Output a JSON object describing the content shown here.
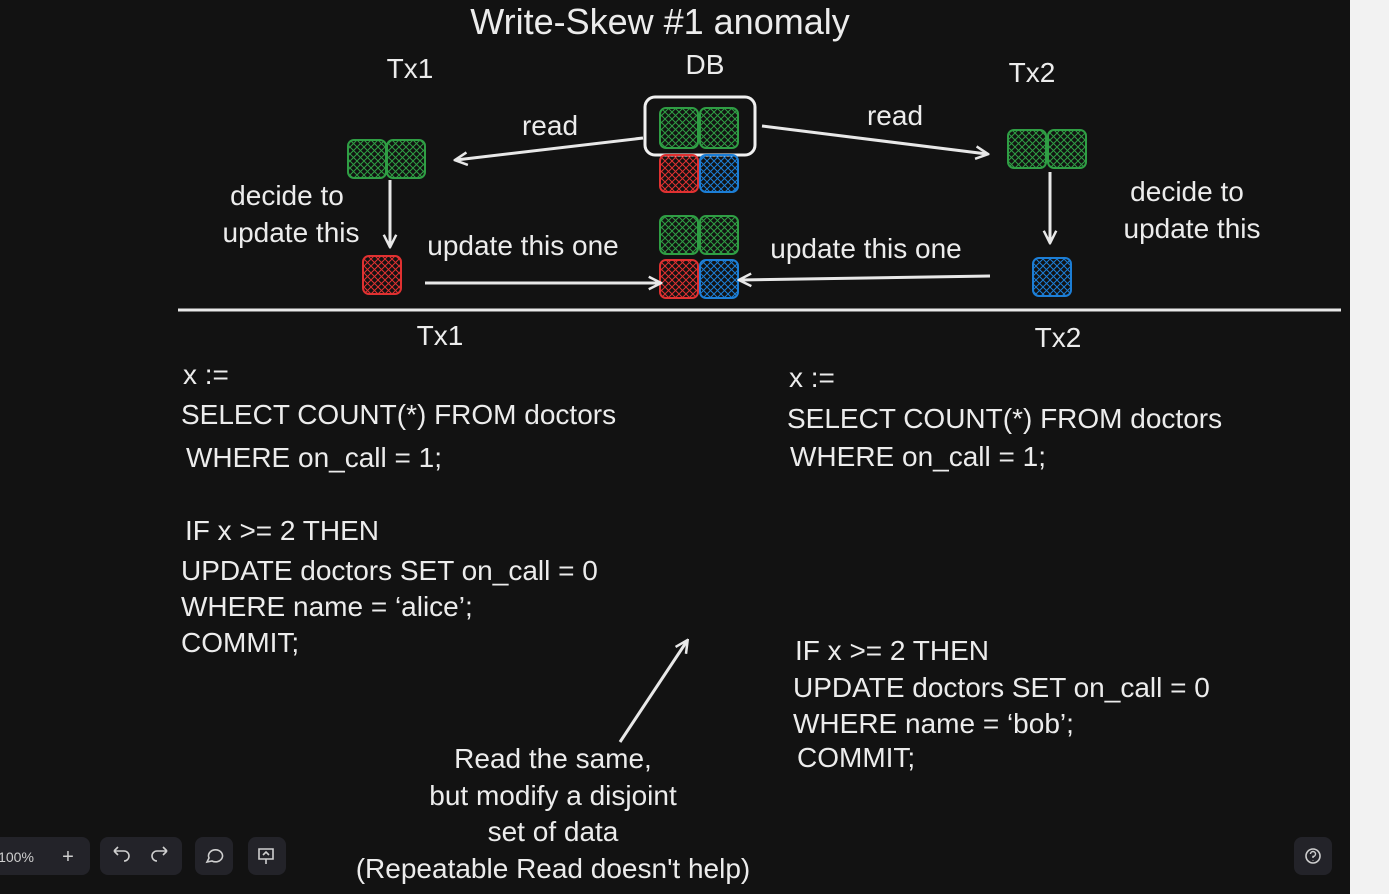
{
  "diagram": {
    "title": "Write-Skew #1 anomaly",
    "labels": {
      "tx1": "Tx1",
      "db": "DB",
      "tx2": "Tx2",
      "read_left": "read",
      "read_right": "read",
      "decide_left": [
        "decide to",
        "update this"
      ],
      "decide_right": [
        "decide to",
        "update this"
      ],
      "update_left": "update this one",
      "update_right": "update this one",
      "tx1_lower": "Tx1",
      "tx2_lower": "Tx2"
    },
    "tx1_code": [
      "x :=",
      "SELECT COUNT(*) FROM doctors",
      "WHERE on_call = 1;",
      "IF x >= 2 THEN",
      "UPDATE doctors SET on_call = 0",
      "WHERE name = ‘alice’;",
      "COMMIT;"
    ],
    "tx2_code": [
      "x :=",
      "SELECT COUNT(*) FROM doctors",
      "WHERE on_call = 1;",
      "IF x >= 2 THEN",
      "UPDATE doctors SET on_call = 0",
      "WHERE name = ‘bob’;",
      "COMMIT;"
    ],
    "note": [
      "Read the same,",
      "but modify a disjoint",
      "set of data",
      "(Repeatable Read doesn't help)"
    ],
    "toolbar": {
      "zoom": "100%",
      "zoom_in": "+"
    }
  }
}
